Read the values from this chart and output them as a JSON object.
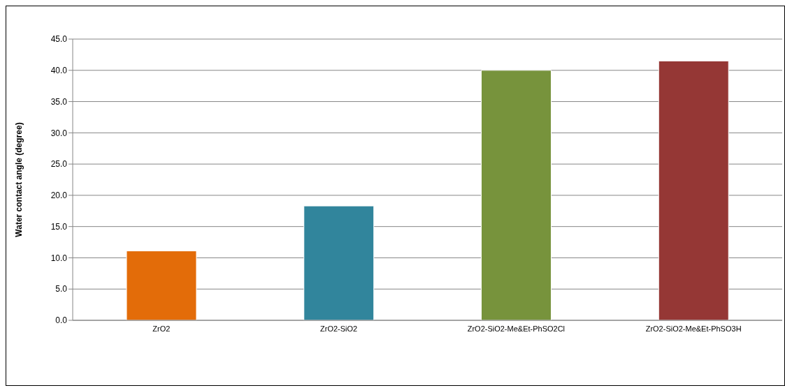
{
  "chart_data": {
    "type": "bar",
    "ylabel": "Water contact angle (degree)",
    "categories": [
      "ZrO2",
      "ZrO2-SiO2",
      "ZrO2-SiO2-Me&Et-PhSO2Cl",
      "ZrO2-SiO2-Me&Et-PhSO3H"
    ],
    "values": [
      11.1,
      18.3,
      40.0,
      41.5
    ],
    "colors": [
      "#e36c09",
      "#31859c",
      "#77933c",
      "#953735"
    ],
    "ylim": [
      0,
      45
    ],
    "yticks": [
      {
        "value": 0,
        "label": "0.0"
      },
      {
        "value": 5,
        "label": "5.0"
      },
      {
        "value": 10,
        "label": "10.0"
      },
      {
        "value": 15,
        "label": "15.0"
      },
      {
        "value": 20,
        "label": "20.0"
      },
      {
        "value": 25,
        "label": "25.0"
      },
      {
        "value": 30,
        "label": "30.0"
      },
      {
        "value": 35,
        "label": "35.0"
      },
      {
        "value": 40,
        "label": "40.0"
      },
      {
        "value": 45,
        "label": "45.0"
      }
    ],
    "grid": "y",
    "legend": false
  }
}
